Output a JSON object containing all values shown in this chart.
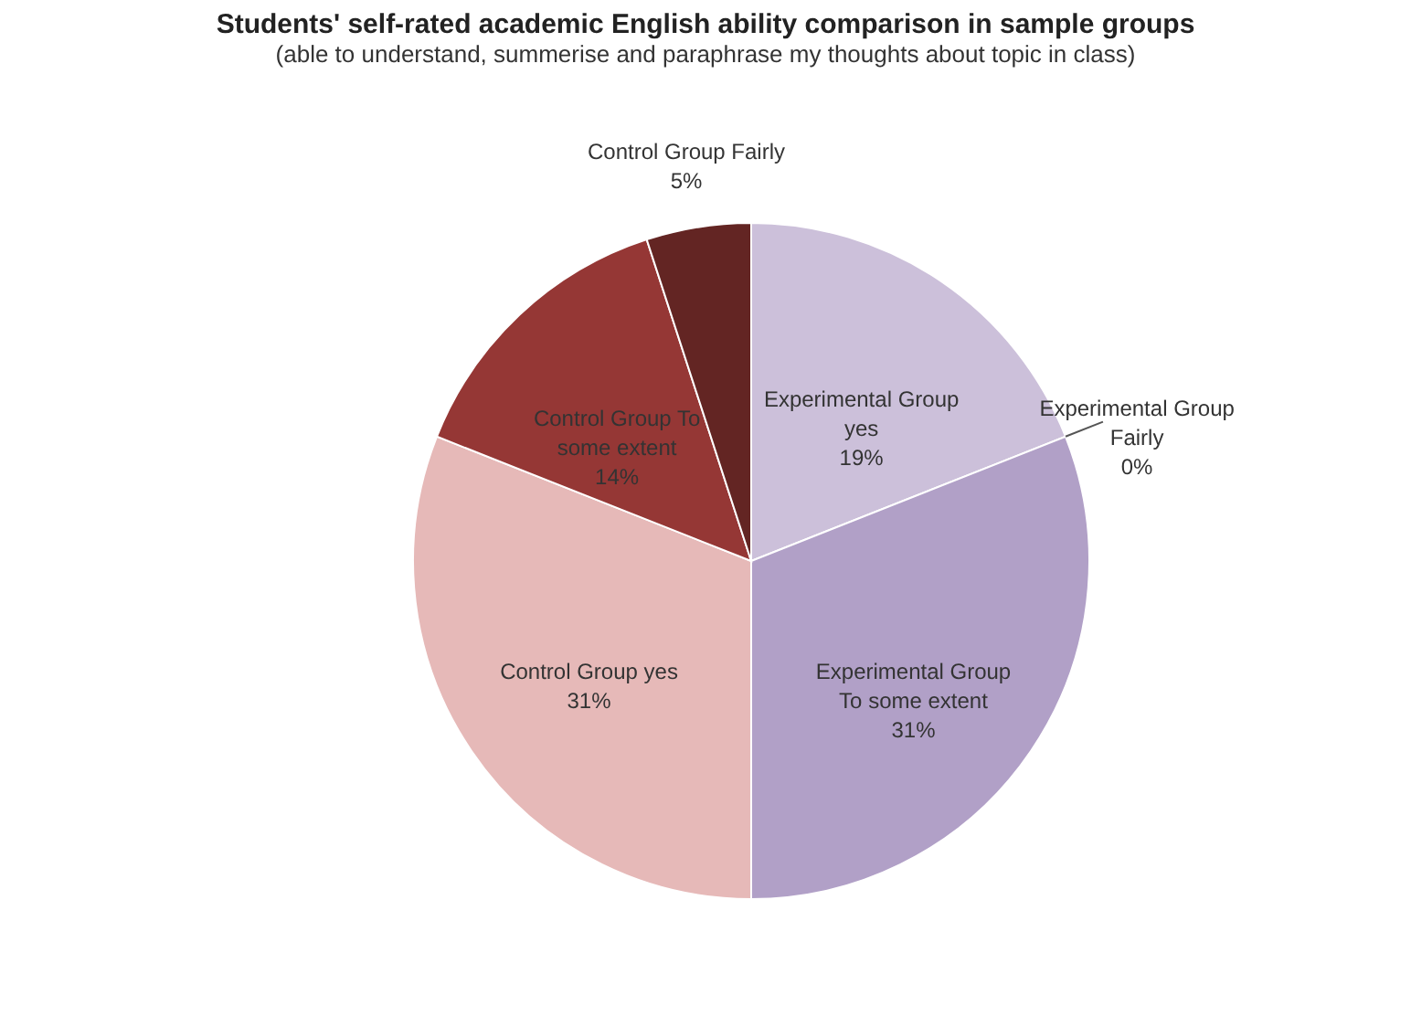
{
  "chart_data": {
    "type": "pie",
    "title": "Students' self-rated academic English ability comparison in sample groups",
    "subtitle": "(able to understand, summerise and paraphrase my thoughts about topic in class)",
    "categories": [
      "Experimental Group yes",
      "Experimental Group Fairly",
      "Experimental Group To some extent",
      "Control Group yes",
      "Control Group To some extent",
      "Control Group Fairly"
    ],
    "values": [
      19,
      0,
      31,
      31,
      14,
      5
    ],
    "value_labels": [
      "19%",
      "0%",
      "31%",
      "31%",
      "14%",
      "5%"
    ],
    "colors": [
      "#ccc0da",
      "#8064a2",
      "#b1a0c7",
      "#e6b9b8",
      "#953735",
      "#632523"
    ],
    "legend": false
  }
}
